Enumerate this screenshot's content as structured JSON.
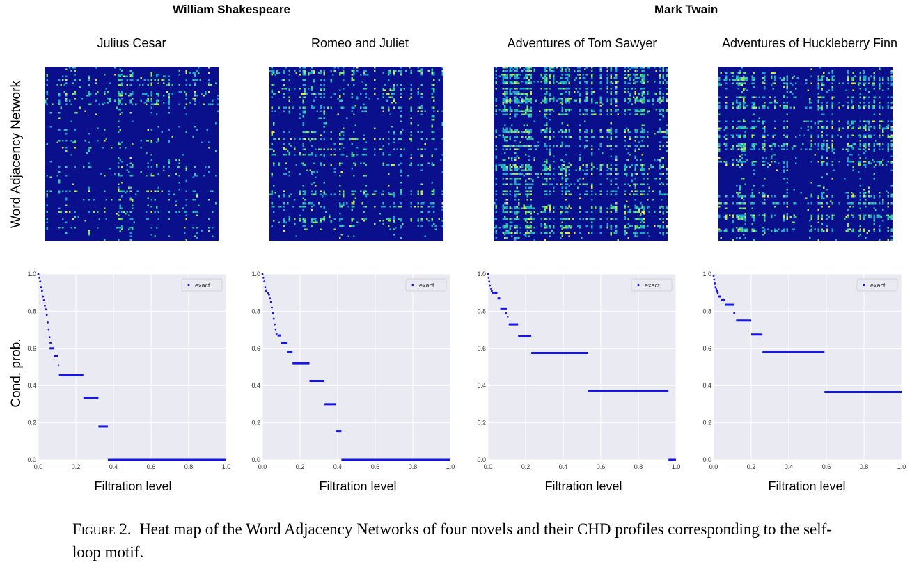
{
  "authors": [
    {
      "name": "William Shakespeare"
    },
    {
      "name": "Mark Twain"
    }
  ],
  "novels": [
    {
      "title": "Julius Cesar"
    },
    {
      "title": "Romeo and Juliet"
    },
    {
      "title": "Adventures of Tom Sawyer"
    },
    {
      "title": "Adventures of Huckleberry Finn"
    }
  ],
  "row_labels": {
    "heatmap": "Word Adjacency Network",
    "profile": "Cond. prob."
  },
  "colors": {
    "heatmap_background": "#0a0f8c",
    "heatmap_hot": [
      "#1aa6c8",
      "#39d0a0",
      "#9ee35a",
      "#e8e84a"
    ],
    "plot_background": "#eaeaf2",
    "series_color": "#1515e8"
  },
  "chart_data": [
    {
      "type": "scatter",
      "novel": "Julius Cesar",
      "xlabel": "Filtration level",
      "ylabel": "Cond. prob.",
      "xlim": [
        0,
        1
      ],
      "ylim": [
        0,
        1
      ],
      "xticks": [
        "0.0",
        "0.2",
        "0.4",
        "0.6",
        "0.8",
        "1.0"
      ],
      "yticks": [
        "0.0",
        "0.2",
        "0.4",
        "0.6",
        "0.8",
        "1.0"
      ],
      "legend": "top-right",
      "grid": true,
      "series": [
        {
          "name": "exact",
          "points": [
            [
              0.0,
              1.0
            ],
            [
              0.005,
              0.98
            ],
            [
              0.01,
              0.96
            ],
            [
              0.015,
              0.93
            ],
            [
              0.02,
              0.91
            ],
            [
              0.025,
              0.88
            ],
            [
              0.03,
              0.86
            ],
            [
              0.035,
              0.83
            ],
            [
              0.04,
              0.81
            ],
            [
              0.045,
              0.78
            ],
            [
              0.05,
              0.74
            ],
            [
              0.055,
              0.7
            ],
            [
              0.06,
              0.66
            ],
            [
              0.065,
              0.63
            ]
          ],
          "steps": [
            [
              0.06,
              0.085,
              0.6
            ],
            [
              0.085,
              0.105,
              0.56
            ],
            [
              0.105,
              0.11,
              0.51
            ],
            [
              0.11,
              0.24,
              0.455
            ],
            [
              0.24,
              0.32,
              0.335
            ],
            [
              0.32,
              0.37,
              0.18
            ],
            [
              0.37,
              1.0,
              0.0
            ]
          ]
        }
      ]
    },
    {
      "type": "scatter",
      "novel": "Romeo and Juliet",
      "xlabel": "Filtration level",
      "ylabel": "",
      "xlim": [
        0,
        1
      ],
      "ylim": [
        0,
        1
      ],
      "xticks": [
        "0.0",
        "0.2",
        "0.4",
        "0.6",
        "0.8",
        "1.0"
      ],
      "yticks": [
        "0.0",
        "0.2",
        "0.4",
        "0.6",
        "0.8",
        "1.0"
      ],
      "legend": "top-right",
      "grid": true,
      "series": [
        {
          "name": "exact",
          "points": [
            [
              0.0,
              1.0
            ],
            [
              0.005,
              0.98
            ],
            [
              0.01,
              0.96
            ],
            [
              0.015,
              0.93
            ],
            [
              0.02,
              0.91
            ],
            [
              0.03,
              0.9
            ],
            [
              0.035,
              0.89
            ],
            [
              0.04,
              0.87
            ],
            [
              0.045,
              0.85
            ],
            [
              0.05,
              0.82
            ],
            [
              0.055,
              0.79
            ],
            [
              0.06,
              0.76
            ],
            [
              0.065,
              0.73
            ],
            [
              0.07,
              0.7
            ],
            [
              0.075,
              0.68
            ]
          ],
          "steps": [
            [
              0.08,
              0.1,
              0.67
            ],
            [
              0.1,
              0.13,
              0.63
            ],
            [
              0.13,
              0.16,
              0.58
            ],
            [
              0.16,
              0.25,
              0.52
            ],
            [
              0.25,
              0.33,
              0.425
            ],
            [
              0.33,
              0.39,
              0.3
            ],
            [
              0.39,
              0.42,
              0.155
            ],
            [
              0.42,
              1.0,
              0.0
            ]
          ]
        }
      ]
    },
    {
      "type": "scatter",
      "novel": "Adventures of Tom Sawyer",
      "xlabel": "Filtration level",
      "ylabel": "",
      "xlim": [
        0,
        1
      ],
      "ylim": [
        0,
        1
      ],
      "xticks": [
        "0.0",
        "0.2",
        "0.4",
        "0.6",
        "0.8",
        "1.0"
      ],
      "yticks": [
        "0.0",
        "0.2",
        "0.4",
        "0.6",
        "0.8",
        "1.0"
      ],
      "legend": "top-right",
      "grid": true,
      "series": [
        {
          "name": "exact",
          "points": [
            [
              0.0,
              1.0
            ],
            [
              0.003,
              0.98
            ],
            [
              0.006,
              0.96
            ],
            [
              0.01,
              0.94
            ],
            [
              0.015,
              0.92
            ],
            [
              0.02,
              0.91
            ],
            [
              0.095,
              0.79
            ],
            [
              0.105,
              0.77
            ]
          ],
          "steps": [
            [
              0.02,
              0.05,
              0.9
            ],
            [
              0.05,
              0.065,
              0.87
            ],
            [
              0.065,
              0.1,
              0.815
            ],
            [
              0.11,
              0.16,
              0.73
            ],
            [
              0.16,
              0.23,
              0.665
            ],
            [
              0.23,
              0.53,
              0.575
            ],
            [
              0.53,
              0.96,
              0.37
            ],
            [
              0.96,
              1.0,
              0.0
            ]
          ]
        }
      ]
    },
    {
      "type": "scatter",
      "novel": "Adventures of Huckleberry Finn",
      "xlabel": "Filtration level",
      "ylabel": "",
      "xlim": [
        0,
        1
      ],
      "ylim": [
        0,
        1
      ],
      "xticks": [
        "0.0",
        "0.2",
        "0.4",
        "0.6",
        "0.8",
        "1.0"
      ],
      "yticks": [
        "0.0",
        "0.2",
        "0.4",
        "0.6",
        "0.8",
        "1.0"
      ],
      "legend": "top-right",
      "grid": true,
      "series": [
        {
          "name": "exact",
          "points": [
            [
              0.0,
              0.99
            ],
            [
              0.003,
              0.97
            ],
            [
              0.006,
              0.95
            ],
            [
              0.01,
              0.93
            ],
            [
              0.014,
              0.92
            ],
            [
              0.018,
              0.91
            ],
            [
              0.022,
              0.9
            ],
            [
              0.11,
              0.79
            ]
          ],
          "steps": [
            [
              0.025,
              0.04,
              0.88
            ],
            [
              0.04,
              0.06,
              0.86
            ],
            [
              0.06,
              0.11,
              0.835
            ],
            [
              0.12,
              0.2,
              0.75
            ],
            [
              0.2,
              0.26,
              0.675
            ],
            [
              0.26,
              0.59,
              0.58
            ],
            [
              0.59,
              1.0,
              0.365
            ],
            [
              1.0,
              1.04,
              0.0
            ]
          ]
        }
      ]
    }
  ],
  "caption": {
    "label": "Figure 2.",
    "text": "Heat map of the Word Adjacency Networks of four novels and their CHD profiles corresponding to the self-loop motif."
  }
}
